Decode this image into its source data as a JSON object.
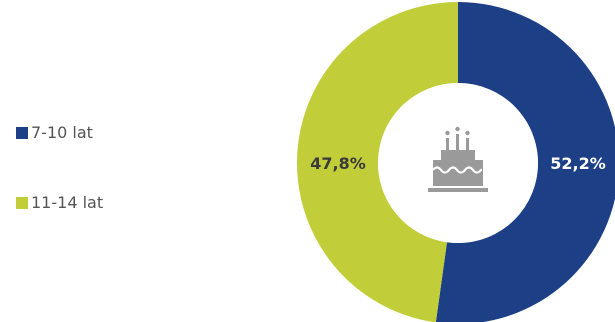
{
  "chart_data": {
    "type": "pie",
    "categories": [
      "7-10 lat",
      "11-14 lat"
    ],
    "values": [
      52.2,
      47.8
    ],
    "colors": [
      "#1d3f86",
      "#c2cd3a"
    ],
    "value_labels": [
      "52,2%",
      "47,8%"
    ],
    "legend_placement": "left",
    "center_icon": "birthday-cake-icon"
  }
}
